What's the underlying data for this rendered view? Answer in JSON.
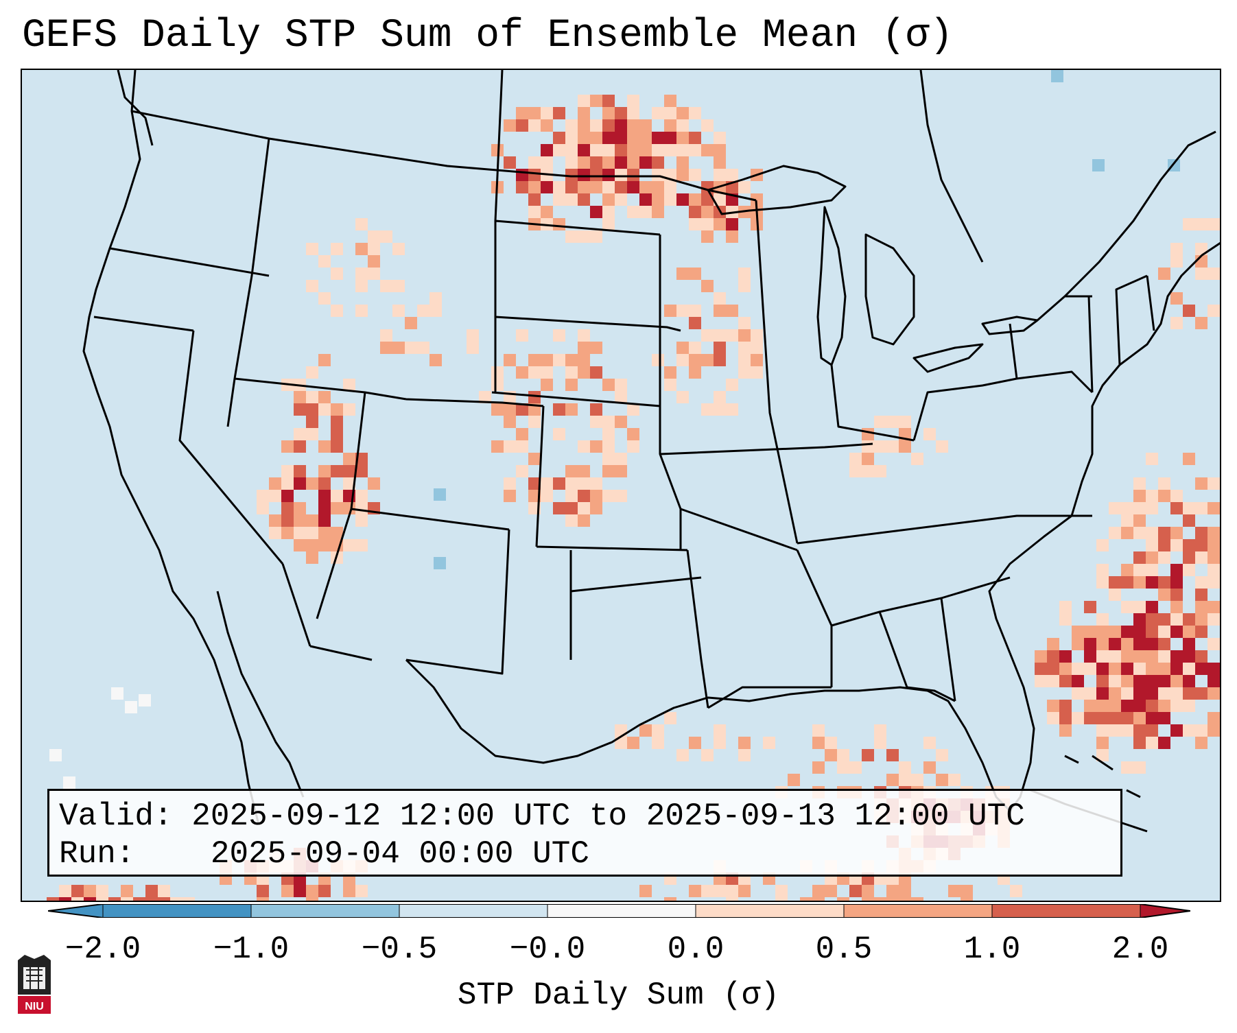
{
  "title": "GEFS Daily STP Sum of Ensemble Mean (σ)",
  "info": {
    "valid_label": "Valid:",
    "valid_value": "2025-09-12 12:00 UTC to 2025-09-13 12:00 UTC",
    "run_label": "Run:",
    "run_value": "2025-09-04 00:00 UTC"
  },
  "colorbar": {
    "title": "STP Daily Sum (σ)",
    "ticks": [
      "−2.0",
      "−1.0",
      "−0.5",
      "−0.0",
      "0.0",
      "0.5",
      "1.0",
      "2.0"
    ],
    "colors": [
      "#4393c3",
      "#92c5de",
      "#d1e5f0",
      "#f7f7f7",
      "#fddbc7",
      "#f4a582",
      "#d6604d",
      "#b2182b"
    ]
  },
  "logo": {
    "text": "NIU"
  },
  "map_background": "#d1e5f0"
}
